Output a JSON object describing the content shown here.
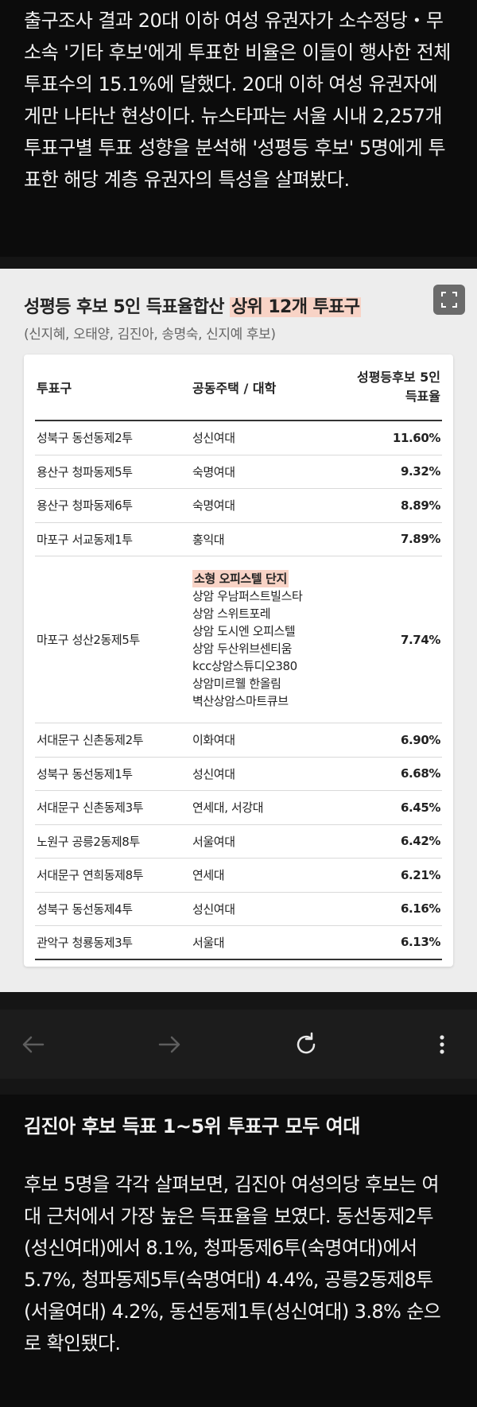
{
  "intro": {
    "text": "출구조사 결과 20대 이하 여성 유권자가 소수정당・무소속 '기타 후보'에게 투표한 비율은 이들이 행사한 전체 투표수의 15.1%에 달했다. 20대 이하 여성 유권자에게만 나타난 현상이다. 뉴스타파는 서울 시내 2,257개 투표구별 투표 성향을 분석해 '성평등 후보' 5명에게 투표한 해당 계층 유권자의 특성을 살펴봤다."
  },
  "card": {
    "title_plain": "성평등 후보 5인 득표율합산 ",
    "title_highlight": "상위 12개 투표구",
    "subtitle": "(신지혜, 오태양, 김진아, 송명숙, 신지예 후보)",
    "expand_icon": "expand-icon"
  },
  "table": {
    "headers": {
      "col1": "투표구",
      "col2": "공동주택 / 대학",
      "col3_line1": "성평등후보 5인",
      "col3_line2": "득표율"
    },
    "rows": [
      {
        "district": "성북구 동선동제2투",
        "place": "성신여대",
        "rate": "11.60%"
      },
      {
        "district": "용산구 청파동제5투",
        "place": "숙명여대",
        "rate": "9.32%"
      },
      {
        "district": "용산구 청파동제6투",
        "place": "숙명여대",
        "rate": "8.89%"
      },
      {
        "district": "마포구 서교동제1투",
        "place": "홍익대",
        "rate": "7.89%"
      },
      {
        "district": "마포구 성산2동제5투",
        "place_highlight": "소형 오피스텔 단지",
        "place_lines": [
          "상암 우남퍼스트빌스타",
          "상암 스위트포레",
          "상암 도시엔 오피스텔",
          "상암 두산위브센티움",
          "kcc상암스튜디오380",
          "상암미르웰 한올림",
          "벽산상암스마트큐브"
        ],
        "rate": "7.74%"
      },
      {
        "district": "서대문구 신촌동제2투",
        "place": "이화여대",
        "rate": "6.90%"
      },
      {
        "district": "성북구 동선동제1투",
        "place": "성신여대",
        "rate": "6.68%"
      },
      {
        "district": "서대문구 신촌동제3투",
        "place": "연세대, 서강대",
        "rate": "6.45%"
      },
      {
        "district": "노원구 공릉2동제8투",
        "place": "서울여대",
        "rate": "6.42%"
      },
      {
        "district": "서대문구 연희동제8투",
        "place": "연세대",
        "rate": "6.21%"
      },
      {
        "district": "성북구 동선동제4투",
        "place": "성신여대",
        "rate": "6.16%"
      },
      {
        "district": "관악구 청룡동제3투",
        "place": "서울대",
        "rate": "6.13%"
      }
    ]
  },
  "navbar": {
    "back_icon": "arrow-left-icon",
    "forward_icon": "arrow-right-icon",
    "reload_icon": "reload-icon",
    "menu_icon": "more-vertical-icon"
  },
  "article": {
    "heading": "김진아 후보 득표 1~5위 투표구 모두 여대",
    "body": "후보 5명을 각각 살펴보면, 김진아 여성의당 후보는 여대 근처에서 가장 높은 득표율을 보였다. 동선동제2투(성신여대)에서 8.1%, 청파동제6투(숙명여대)에서 5.7%, 청파동제5투(숙명여대) 4.4%, 공릉2동제8투(서울여대) 4.2%, 동선동제1투(성신여대) 3.8% 순으로 확인됐다."
  }
}
